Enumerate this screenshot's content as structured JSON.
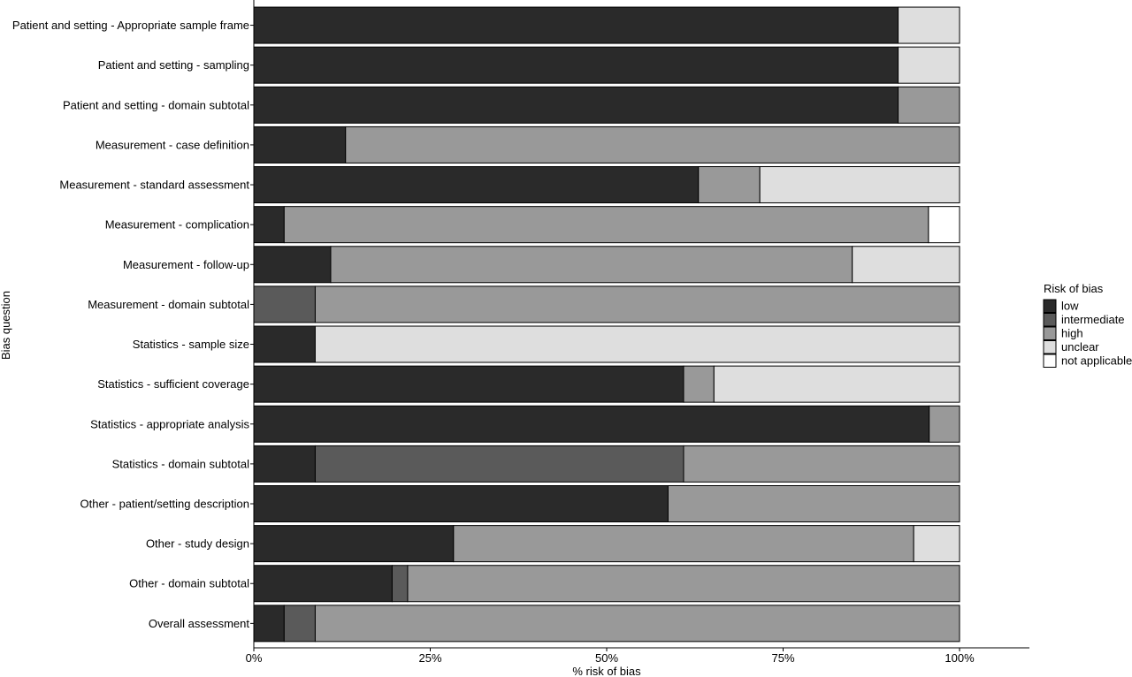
{
  "chart_data": {
    "type": "bar",
    "orientation": "horizontal",
    "stacked": true,
    "xlabel": "% risk of bias",
    "ylabel": "Bias question",
    "xlim": [
      0,
      100
    ],
    "x_ticks": [
      0,
      25,
      50,
      75,
      100
    ],
    "x_tick_labels": [
      "0%",
      "25%",
      "50%",
      "75%",
      "100%"
    ],
    "grid": false,
    "legend": {
      "title": "Risk of bias",
      "position": "right"
    },
    "categories": [
      "Patient and setting - Appropriate sample frame",
      "Patient and setting - sampling",
      "Patient and setting - domain subtotal",
      "Measurement - case definition",
      "Measurement - standard assessment",
      "Measurement - complication",
      "Measurement - follow-up",
      "Measurement - domain subtotal",
      "Statistics - sample size",
      "Statistics - sufficient coverage",
      "Statistics - appropriate analysis",
      "Statistics - domain subtotal",
      "Other - patient/setting description",
      "Other - study design",
      "Other - domain subtotal",
      "Overall assessment"
    ],
    "series": [
      {
        "name": "low",
        "color": "#2a2a2a",
        "values": [
          91.3,
          91.3,
          91.3,
          13.0,
          63.0,
          4.3,
          10.9,
          0,
          8.7,
          60.9,
          95.7,
          8.7,
          58.7,
          28.3,
          19.6,
          4.3
        ]
      },
      {
        "name": "intermediate",
        "color": "#5a5a5a",
        "values": [
          0,
          0,
          0,
          0,
          0,
          0,
          0,
          8.7,
          0,
          0,
          0,
          52.2,
          0,
          0,
          2.2,
          4.4
        ]
      },
      {
        "name": "high",
        "color": "#999999",
        "values": [
          0,
          0,
          8.7,
          87.0,
          8.7,
          91.3,
          73.9,
          91.3,
          0,
          4.3,
          4.3,
          39.1,
          41.3,
          65.2,
          78.2,
          91.3
        ]
      },
      {
        "name": "unclear",
        "color": "#dedede",
        "values": [
          8.7,
          8.7,
          0,
          0,
          28.3,
          0,
          15.2,
          0,
          91.3,
          34.8,
          0,
          0,
          0,
          6.5,
          0,
          0
        ]
      },
      {
        "name": "not applicable",
        "color": "#ffffff",
        "values": [
          0,
          0,
          0,
          0,
          0,
          4.4,
          0,
          0,
          0,
          0,
          0,
          0,
          0,
          0,
          0,
          0
        ]
      }
    ]
  }
}
